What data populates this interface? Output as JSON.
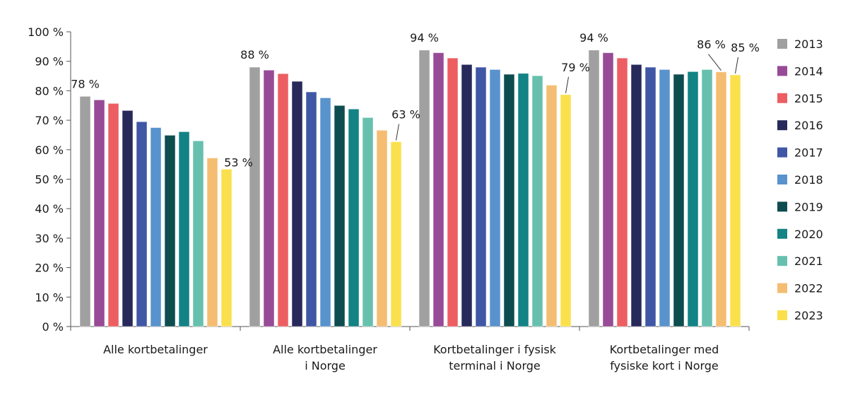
{
  "chart_data": {
    "type": "bar",
    "title": "",
    "xlabel": "",
    "ylabel": "",
    "ylim": [
      0,
      100
    ],
    "yticks": [
      0,
      10,
      20,
      30,
      40,
      50,
      60,
      70,
      80,
      90,
      100
    ],
    "ytick_labels": [
      "0 %",
      "10 %",
      "20 %",
      "30 %",
      "40 %",
      "50 %",
      "60 %",
      "70 %",
      "80 %",
      "90 %",
      "100 %"
    ],
    "grid": false,
    "legend_position": "right",
    "categories": [
      "Alle kortbetalinger",
      "Alle kortbetalinger\ni Norge",
      "Kortbetalinger i fysisk\nterminal i Norge",
      "Kortbetalinger med\nfysiske kort i Norge"
    ],
    "series": [
      {
        "name": "2013",
        "color": "#a0a0a0",
        "values": [
          78.1,
          88.0,
          93.8,
          93.8
        ]
      },
      {
        "name": "2014",
        "color": "#974a96",
        "values": [
          76.9,
          87.0,
          92.9,
          92.9
        ]
      },
      {
        "name": "2015",
        "color": "#ed5e62",
        "values": [
          75.7,
          85.8,
          91.1,
          91.1
        ]
      },
      {
        "name": "2016",
        "color": "#27295a",
        "values": [
          73.3,
          83.2,
          88.9,
          88.9
        ]
      },
      {
        "name": "2017",
        "color": "#4057a5",
        "values": [
          69.5,
          79.6,
          88.0,
          88.0
        ]
      },
      {
        "name": "2018",
        "color": "#5893cd",
        "values": [
          67.5,
          77.6,
          87.2,
          87.2
        ]
      },
      {
        "name": "2019",
        "color": "#0d4d4f",
        "values": [
          64.9,
          75.0,
          85.6,
          85.6
        ]
      },
      {
        "name": "2020",
        "color": "#138385",
        "values": [
          66.1,
          73.8,
          85.9,
          86.5
        ]
      },
      {
        "name": "2021",
        "color": "#67c0ae",
        "values": [
          63.0,
          70.9,
          85.1,
          87.2
        ]
      },
      {
        "name": "2022",
        "color": "#f5bd72",
        "values": [
          57.2,
          66.6,
          81.9,
          86.4
        ]
      },
      {
        "name": "2023",
        "color": "#fbe04e",
        "values": [
          53.4,
          62.7,
          78.7,
          85.4
        ]
      }
    ],
    "annotations": [
      {
        "category": 0,
        "series": "2013",
        "text": "78 %"
      },
      {
        "category": 0,
        "series": "2023",
        "text": "53 %"
      },
      {
        "category": 1,
        "series": "2013",
        "text": "88 %"
      },
      {
        "category": 1,
        "series": "2023",
        "text": "63 %"
      },
      {
        "category": 2,
        "series": "2013",
        "text": "94 %"
      },
      {
        "category": 2,
        "series": "2023",
        "text": "79 %"
      },
      {
        "category": 3,
        "series": "2013",
        "text": "94 %"
      },
      {
        "category": 3,
        "series": "2022",
        "text": "86 %"
      },
      {
        "category": 3,
        "series": "2023",
        "text": "85 %"
      }
    ]
  }
}
